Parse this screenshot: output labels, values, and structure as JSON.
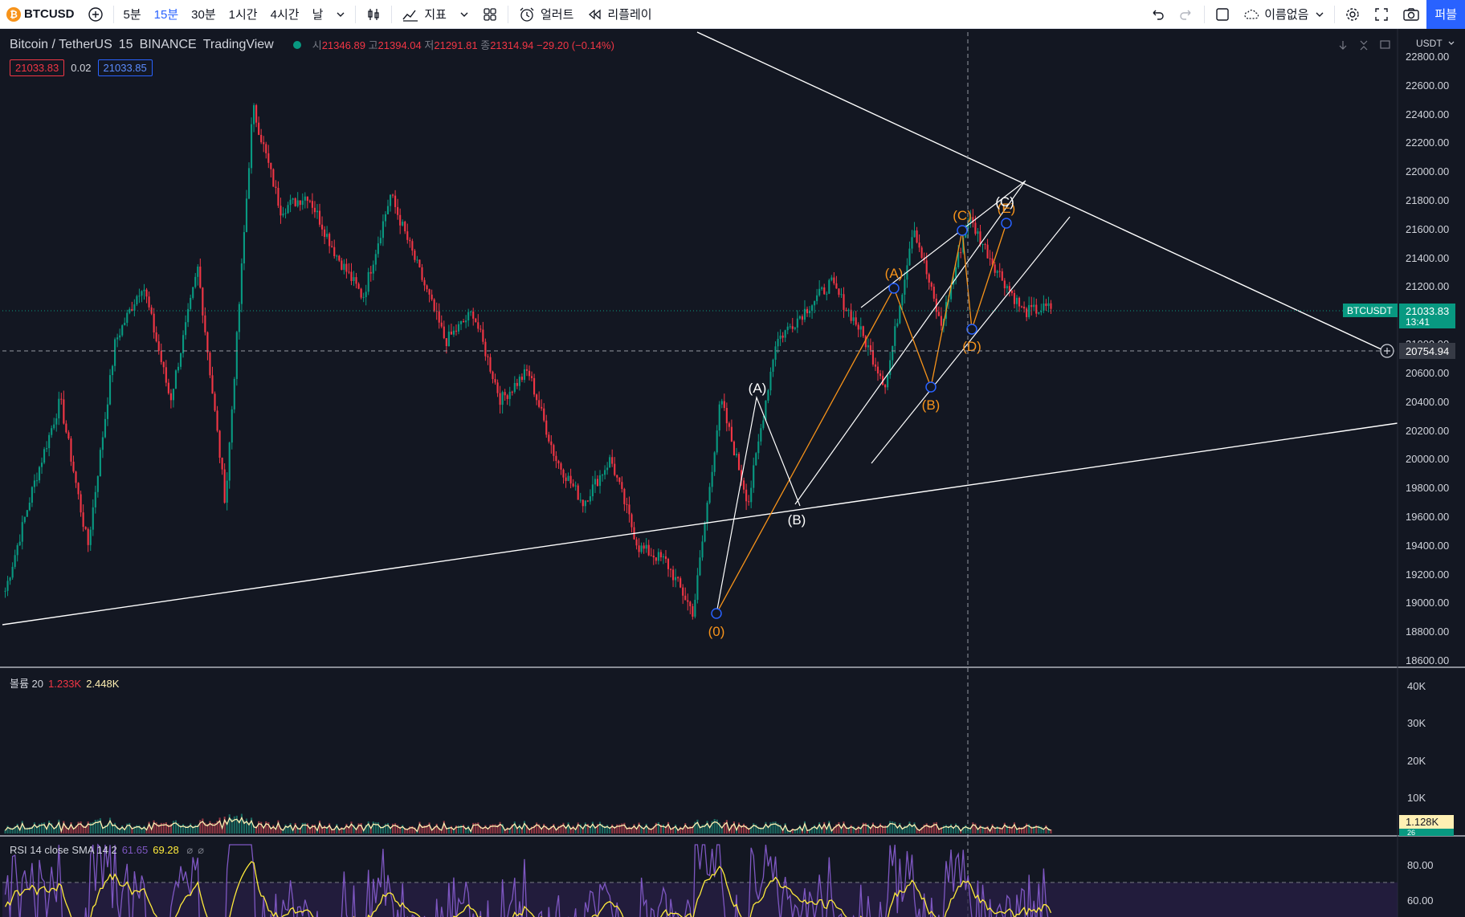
{
  "toolbar": {
    "symbol": "BTCUSD",
    "intervals": [
      "5분",
      "15분",
      "30분",
      "1시간",
      "4시간",
      "날"
    ],
    "active_interval": "15분",
    "indicators_label": "지표",
    "alert_label": "얼러트",
    "replay_label": "리플레이",
    "layout_name": "이름없음",
    "publish_label": "퍼블"
  },
  "legend": {
    "title": "Bitcoin / TetherUS",
    "interval": "15",
    "exchange": "BINANCE",
    "source": "TradingView",
    "open_label": "시",
    "open": "21346.89",
    "high_label": "고",
    "high": "21394.04",
    "low_label": "저",
    "low": "21291.81",
    "close_label": "종",
    "close": "21314.94",
    "change": "−29.20 (−0.14%)",
    "bid": "21033.83",
    "spread": "0.02",
    "ask": "21033.85"
  },
  "axis": {
    "currency": "USDT",
    "ticks": [
      "22800.00",
      "22600.00",
      "22400.00",
      "22200.00",
      "22000.00",
      "21800.00",
      "21600.00",
      "21400.00",
      "21200.00",
      "21000.00",
      "20800.00",
      "20600.00",
      "20400.00",
      "20200.00",
      "20000.00",
      "19800.00",
      "19600.00",
      "19400.00",
      "19200.00",
      "19000.00",
      "18800.00",
      "18600.00"
    ],
    "current_symbol": "BTCUSDT",
    "current_price": "21033.83",
    "countdown": "13:41",
    "crosshair_price": "20754.94"
  },
  "volume": {
    "label": "볼륨 20",
    "v1": "1.233K",
    "v2": "2.448K",
    "ticks": [
      "40K",
      "30K",
      "20K",
      "10K"
    ],
    "current": "1.128K",
    "small": "26"
  },
  "rsi": {
    "label": "RSI 14 close SMA 14 2",
    "v1": "61.65",
    "v2": "69.28",
    "ticks": [
      "80.00",
      "60.00"
    ]
  },
  "chart_data": {
    "type": "line",
    "title": "Bitcoin / TetherUS",
    "ylim": [
      18600,
      22800
    ],
    "grid": false,
    "price_path_approx": [
      19100,
      19800,
      20400,
      19400,
      20800,
      21200,
      20400,
      21300,
      19700,
      22400,
      21700,
      21800,
      21400,
      21100,
      21800,
      21300,
      20800,
      21000,
      20400,
      20600,
      20000,
      19700,
      20000,
      19400,
      19300,
      18950,
      20400,
      19700,
      20800,
      21000,
      21200,
      20900,
      20500,
      21600,
      20900,
      21650,
      21300,
      21000,
      21030
    ],
    "wave_labels_white": [
      "(A)",
      "(B)",
      "(C)"
    ],
    "wave_labels_orange": [
      "(0)",
      "(A)",
      "(B)",
      "(C)",
      "(D)",
      "(E)"
    ],
    "wave_points_white": [
      [
        20400,
        "(A)"
      ],
      [
        19700,
        "(B)"
      ],
      [
        21700,
        "(C)"
      ]
    ],
    "wave_points_orange": [
      [
        18900,
        "(0)"
      ],
      [
        21200,
        "(A)"
      ],
      [
        20500,
        "(B)"
      ],
      [
        21600,
        "(C)"
      ],
      [
        20900,
        "(D)"
      ],
      [
        21650,
        "(E)"
      ]
    ]
  }
}
